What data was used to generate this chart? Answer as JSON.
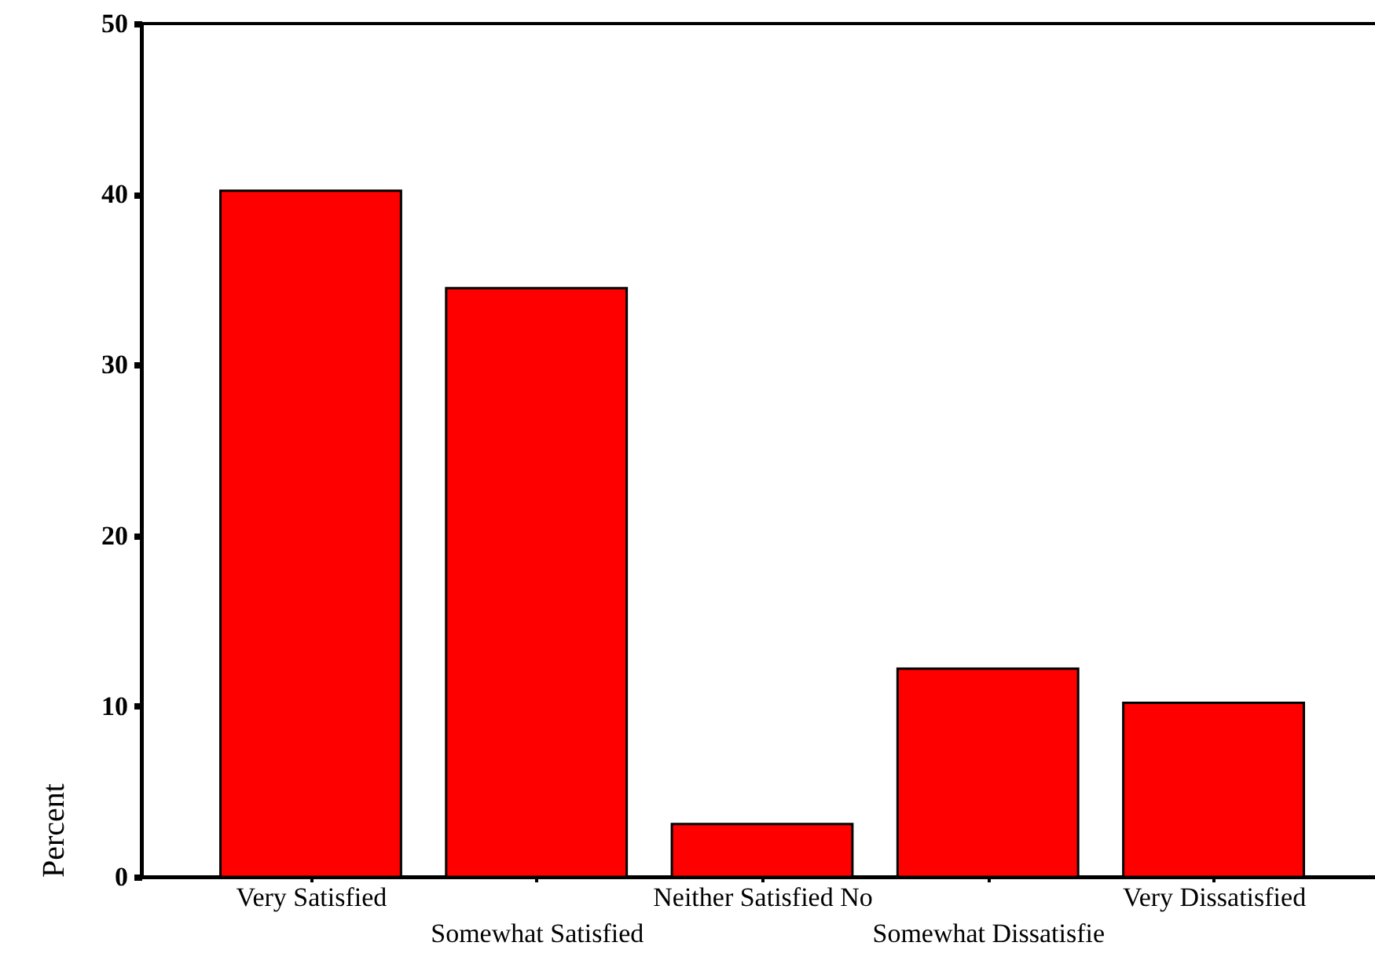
{
  "chart_data": {
    "type": "bar",
    "ylabel": "Percent",
    "categories": [
      "Very Satisfied",
      "Somewhat Satisfied",
      "Neither Satisfied No",
      "Somewhat Dissatisfie",
      "Very Dissatisfied"
    ],
    "values": [
      40.2,
      34.5,
      3.1,
      12.2,
      10.2
    ],
    "color": "#ff0000",
    "ylim": [
      0,
      50
    ],
    "yticks": [
      0,
      10,
      20,
      30,
      40,
      50
    ],
    "grid": false
  }
}
